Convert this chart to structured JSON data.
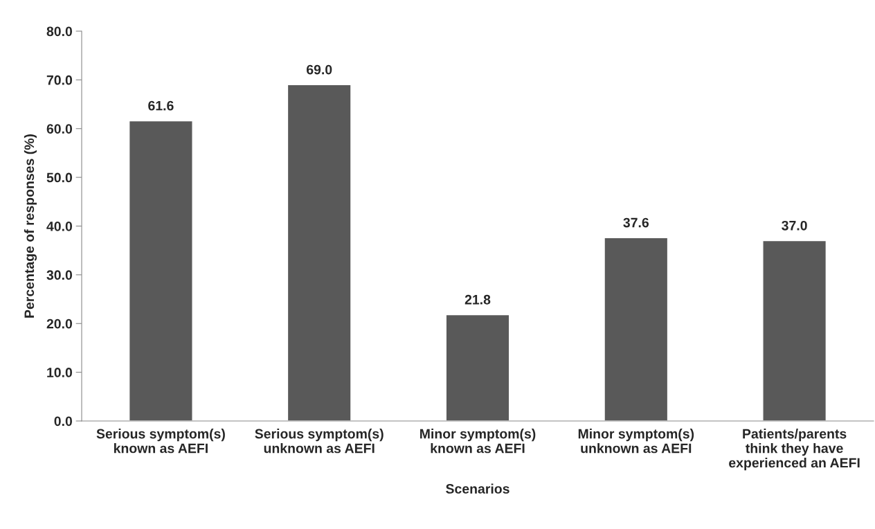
{
  "chart_data": {
    "type": "bar",
    "xlabel": "Scenarios",
    "ylabel": "Percentage of responses (%)",
    "categories": [
      "Serious symptom(s)\nknown as AEFI",
      "Serious symptom(s)\nunknown as AEFI",
      "Minor symptom(s)\nknown as AEFI",
      "Minor symptom(s)\nunknown as AEFI",
      "Patients/parents\nthink they have\nexperienced an AEFI"
    ],
    "values": [
      61.6,
      69.0,
      21.8,
      37.6,
      37.0
    ],
    "value_labels": [
      "61.6",
      "69.0",
      "21.8",
      "37.6",
      "37.0"
    ],
    "color": "#595959",
    "ylim": [
      0,
      80
    ],
    "yticks": [
      {
        "value": 0,
        "label": "0.0"
      },
      {
        "value": 10,
        "label": "10.0"
      },
      {
        "value": 20,
        "label": "20.0"
      },
      {
        "value": 30,
        "label": "30.0"
      },
      {
        "value": 40,
        "label": "40.0"
      },
      {
        "value": 50,
        "label": "50.0"
      },
      {
        "value": 60,
        "label": "60.0"
      },
      {
        "value": 70,
        "label": "70.0"
      },
      {
        "value": 80,
        "label": "80.0"
      }
    ],
    "grid": false,
    "legend": false
  }
}
